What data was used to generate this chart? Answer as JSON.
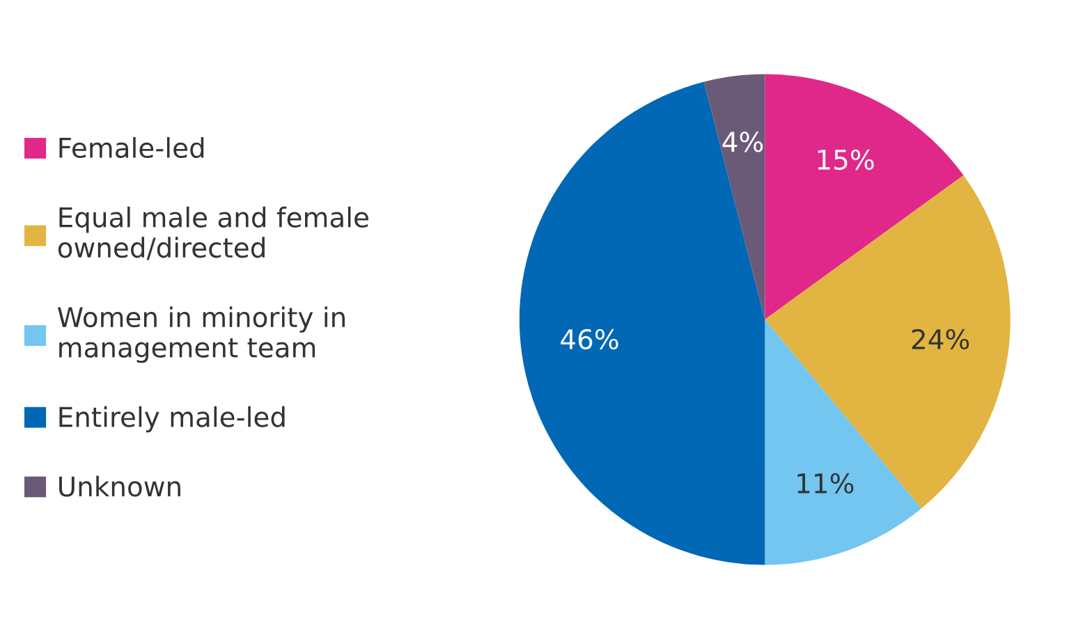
{
  "chart_data": {
    "type": "pie",
    "categories": [
      "Female-led",
      "Equal male and female\nowned/directed",
      "Women in minority in\nmanagement team",
      "Entirely male-led",
      "Unknown"
    ],
    "values": [
      15,
      24,
      11,
      46,
      4
    ],
    "colors": [
      "#e0288a",
      "#e2b441",
      "#72c6f0",
      "#0068b4",
      "#6a5a78"
    ],
    "value_labels": [
      "15%",
      "24%",
      "11%",
      "46%",
      "4%"
    ],
    "legend": "left"
  }
}
